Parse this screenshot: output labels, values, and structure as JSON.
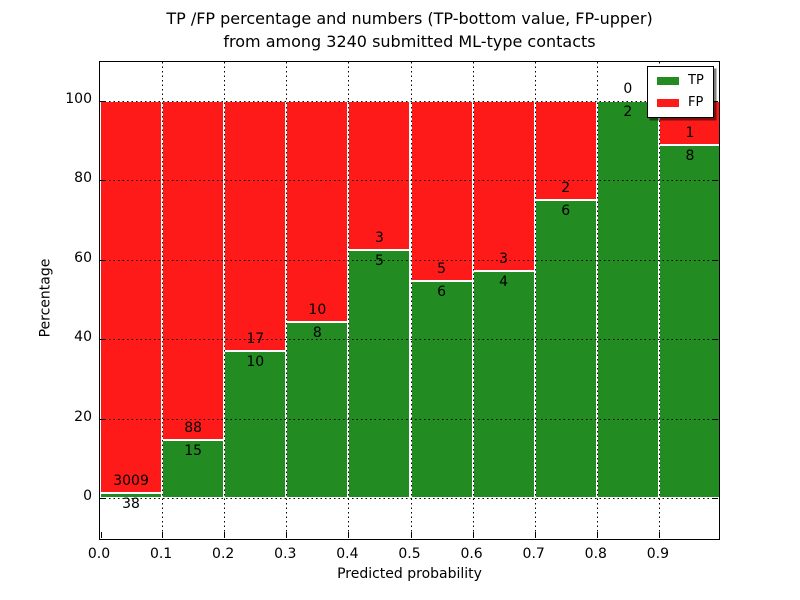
{
  "figure": {
    "title_line1": "TP /FP percentage and numbers (TP-bottom value, FP-upper)",
    "title_line2": "from among 3240 submitted ML-type contacts"
  },
  "axes": {
    "xlabel": "Predicted probability",
    "ylabel": "Percentage",
    "x_tick_labels": [
      "0.0",
      "0.1",
      "0.2",
      "0.3",
      "0.4",
      "0.5",
      "0.6",
      "0.7",
      "0.8",
      "0.9"
    ],
    "y_tick_labels": [
      "0",
      "20",
      "40",
      "60",
      "80",
      "100"
    ]
  },
  "legend": {
    "entries": [
      {
        "label": "TP",
        "color": "#228b22"
      },
      {
        "label": "FP",
        "color": "#ff1a1a"
      }
    ]
  },
  "chart_data": {
    "type": "bar",
    "stacked": true,
    "normalized_to_percent": true,
    "title": "TP /FP percentage and numbers (TP-bottom value, FP-upper) from among 3240 submitted ML-type contacts",
    "xlabel": "Predicted probability",
    "ylabel": "Percentage",
    "total_contacts": 3240,
    "bin_edges": [
      0.0,
      0.1,
      0.2,
      0.3,
      0.4,
      0.5,
      0.6,
      0.7,
      0.8,
      0.9,
      1.0
    ],
    "series": [
      {
        "name": "TP",
        "color": "#228b22",
        "counts": [
          38,
          15,
          10,
          8,
          5,
          6,
          4,
          6,
          2,
          8
        ]
      },
      {
        "name": "FP",
        "color": "#ff1a1a",
        "counts": [
          3009,
          88,
          17,
          10,
          3,
          5,
          3,
          2,
          0,
          1
        ]
      }
    ],
    "tp_percent_of_bin": [
      1.2,
      14.6,
      37.0,
      44.4,
      62.5,
      54.5,
      57.1,
      75.0,
      100.0,
      88.9
    ],
    "xlim": [
      0.0,
      1.0
    ],
    "ylim": [
      -11,
      110
    ],
    "grid": "dotted",
    "legend_position": "upper right"
  }
}
